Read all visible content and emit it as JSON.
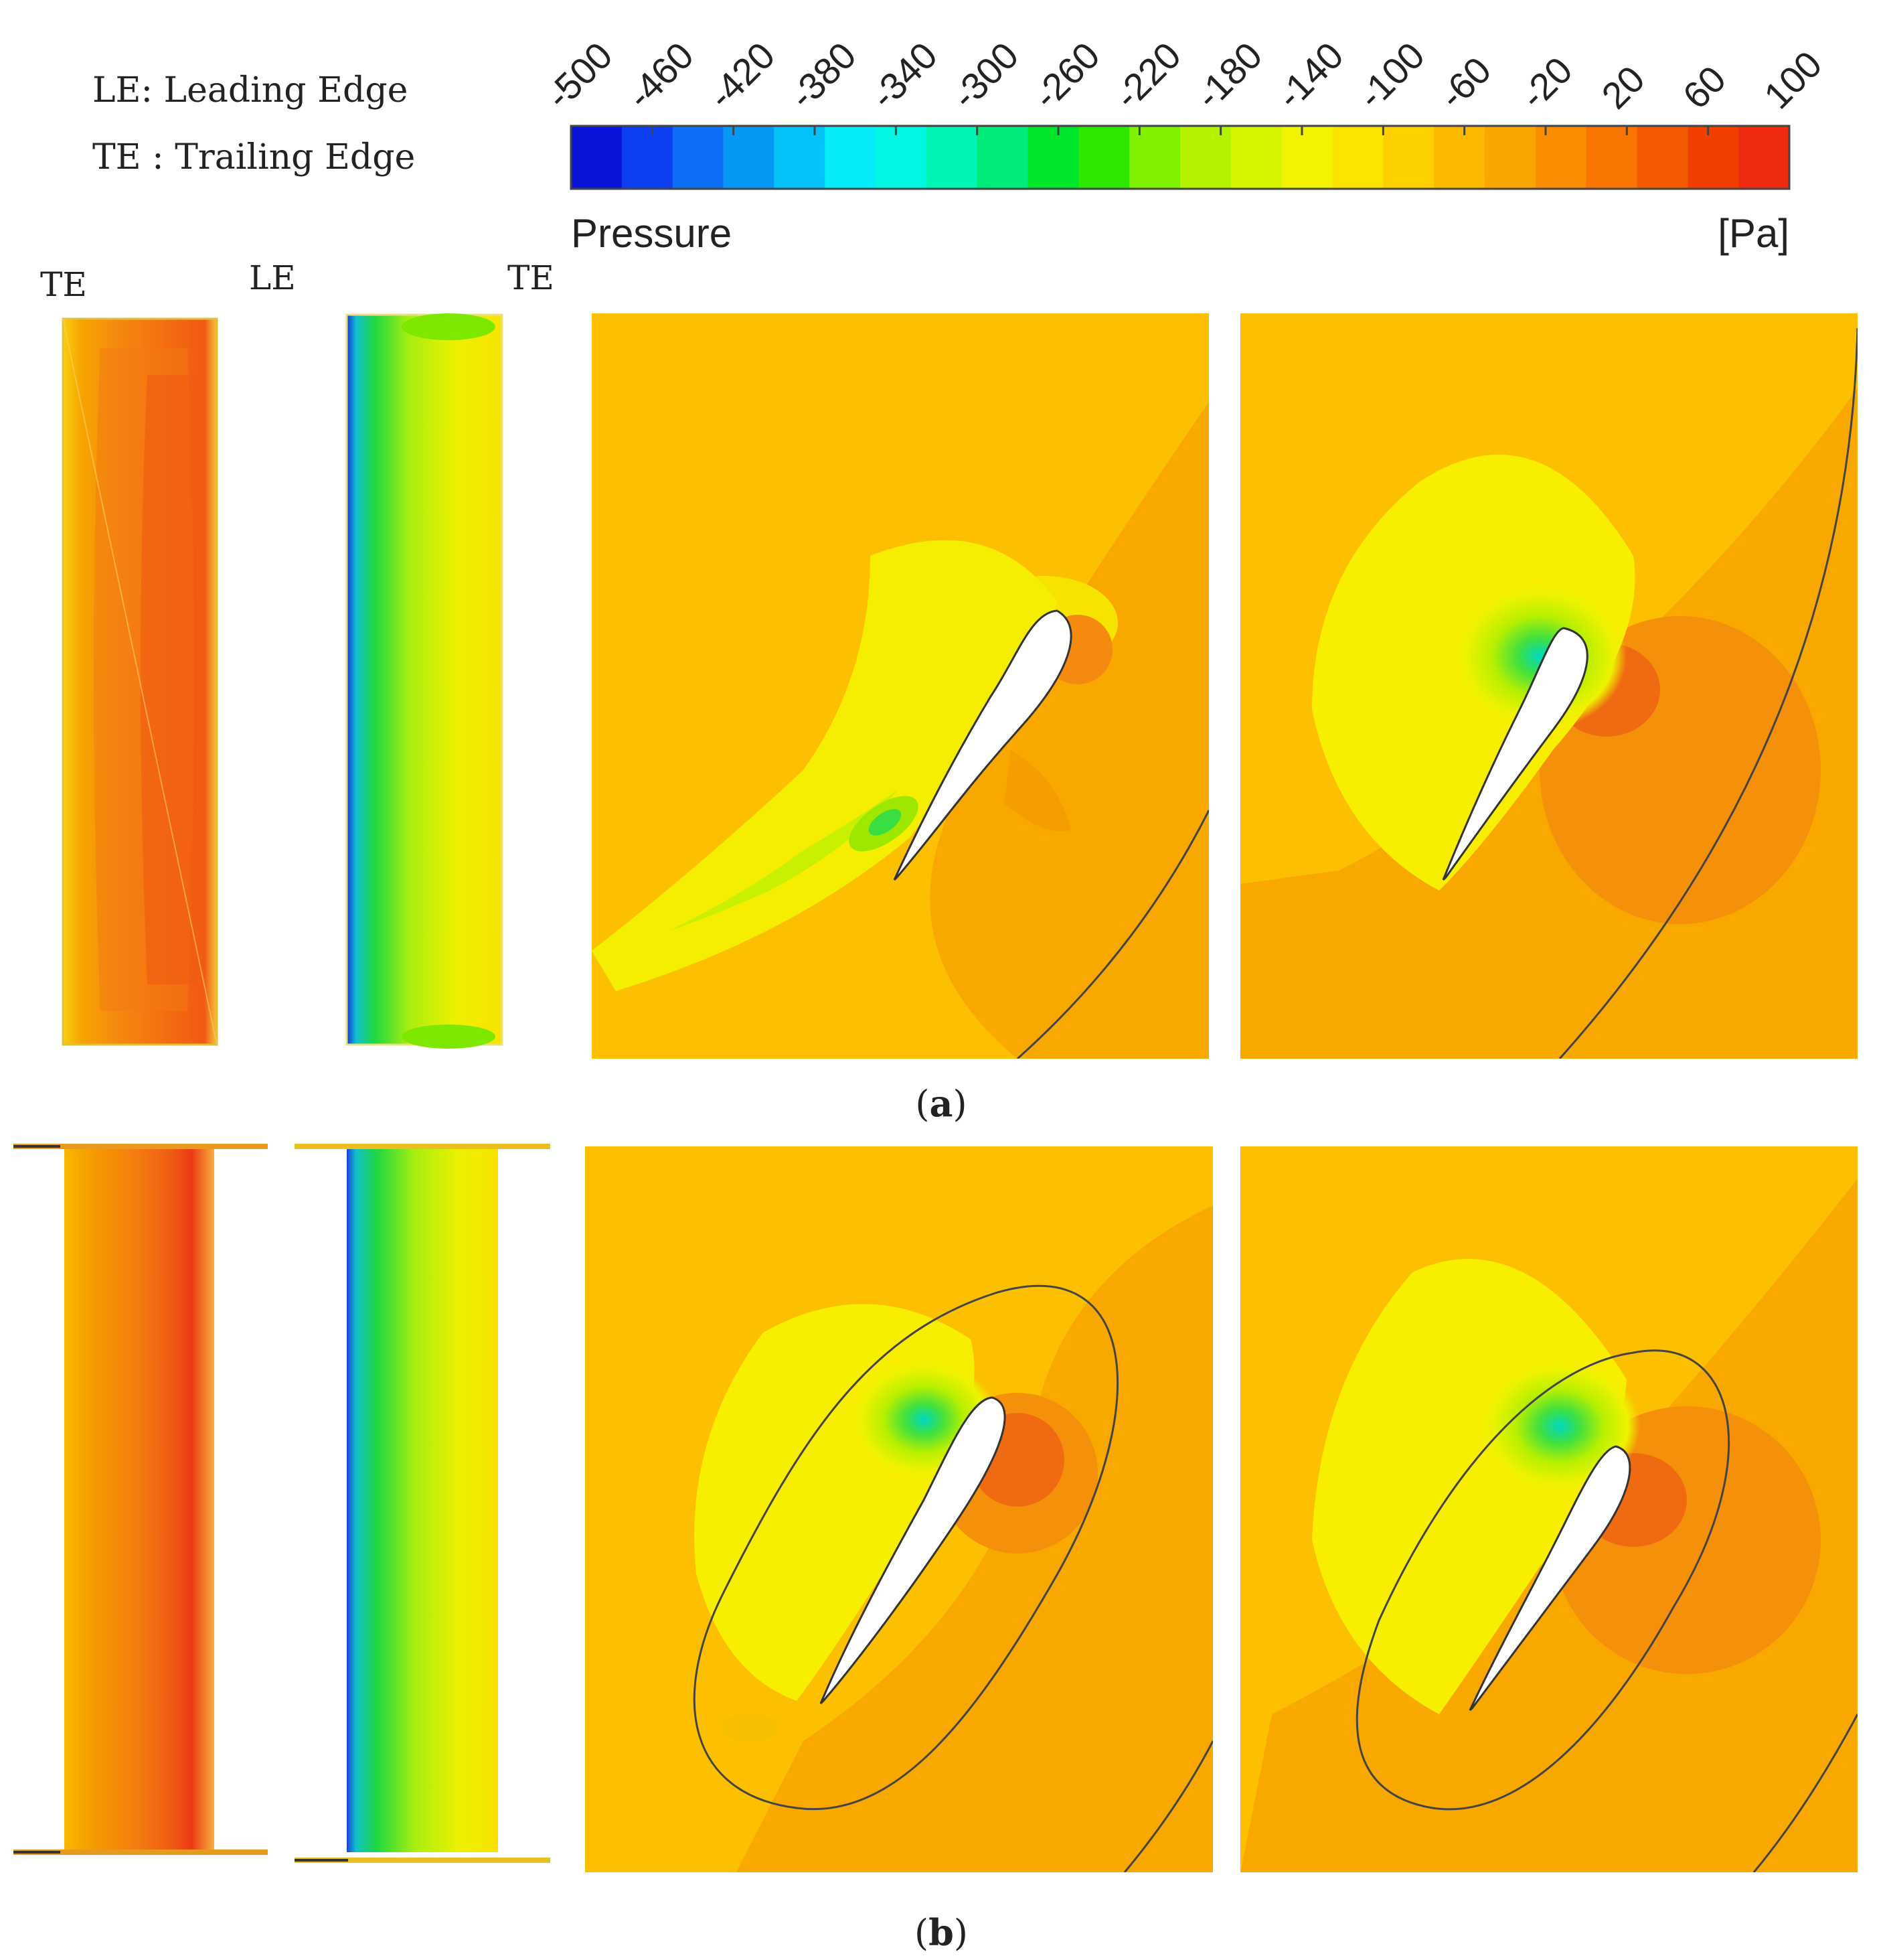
{
  "legend": {
    "le_definition": "LE: Leading Edge",
    "te_definition": "TE : Trailing Edge"
  },
  "colorbar": {
    "title": "Pressure",
    "unit": "[Pa]",
    "ticks": [
      "-500",
      "-460",
      "-420",
      "-380",
      "-340",
      "-300",
      "-260",
      "-220",
      "-180",
      "-140",
      "-100",
      "-60",
      "-20",
      "20",
      "60",
      "100"
    ],
    "min": -500,
    "max": 100,
    "colors": [
      "#0a14d8",
      "#0b3ff0",
      "#0b6ef5",
      "#0798f5",
      "#04c2f8",
      "#06ebf8",
      "#00f7e2",
      "#00f3b2",
      "#00ec7a",
      "#00e42a",
      "#2ee800",
      "#7ef000",
      "#b4f200",
      "#d8f500",
      "#f2f300",
      "#fbe300",
      "#fdd000",
      "#fbba00",
      "#fba500",
      "#f98e00",
      "#f77500",
      "#f45a00",
      "#f03f00",
      "#ee2a10"
    ]
  },
  "blade_labels": {
    "te_left": "TE",
    "le_center": "LE",
    "te_right": "TE"
  },
  "panels": {
    "a": {
      "caption_open": "(",
      "caption_letter": "a",
      "caption_close": ")"
    },
    "b": {
      "caption_open": "(",
      "caption_letter": "b",
      "caption_close": ")"
    }
  },
  "colors": {
    "background_field": "#fcc000",
    "orange_field": "#f9a800",
    "outline": "#3a3a3a"
  }
}
